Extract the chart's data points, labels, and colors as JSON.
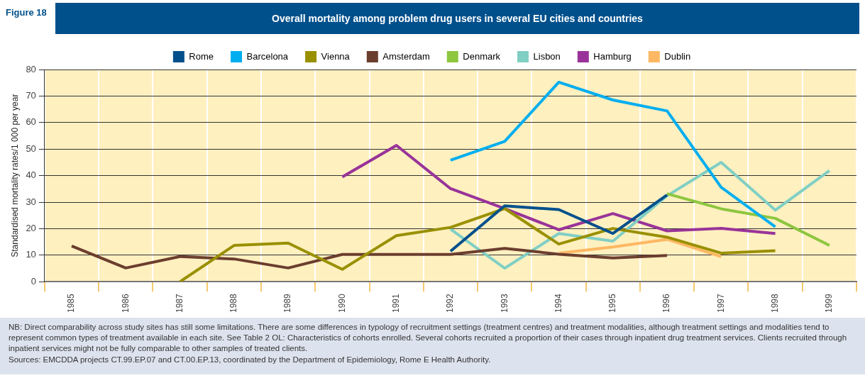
{
  "chart_data": {
    "type": "line",
    "title": "Overall mortality among problem drug users in several EU cities and countries",
    "ylabel": "Standardised mortality rates/1 000 per year",
    "categories": [
      "1985",
      "1986",
      "1987",
      "1988",
      "1989",
      "1990",
      "1991",
      "1992",
      "1993",
      "1994",
      "1995",
      "1996",
      "1997",
      "1998",
      "1999"
    ],
    "series": [
      {
        "name": "Rome",
        "color": "#00508c",
        "values": [
          null,
          null,
          null,
          null,
          null,
          null,
          null,
          11.5,
          28.6,
          27.2,
          18.2,
          32.7,
          null,
          null,
          null
        ]
      },
      {
        "name": "Barcelona",
        "color": "#00aeef",
        "values": [
          null,
          null,
          null,
          null,
          null,
          null,
          null,
          45.8,
          52.9,
          75.2,
          68.5,
          64.4,
          35.6,
          20.7,
          null
        ]
      },
      {
        "name": "Vienna",
        "color": "#999000",
        "values": [
          null,
          null,
          0,
          13.7,
          14.6,
          4.7,
          17.4,
          20.5,
          27.6,
          14.2,
          20.1,
          16.8,
          10.8,
          11.7,
          null
        ]
      },
      {
        "name": "Amsterdam",
        "color": "#6b3e2e",
        "values": [
          13.5,
          5.2,
          9.5,
          8.6,
          5.2,
          10.3,
          10.3,
          10.3,
          12.6,
          10.4,
          9,
          9.9,
          null,
          null,
          null
        ]
      },
      {
        "name": "Denmark",
        "color": "#8dc63f",
        "values": [
          null,
          null,
          null,
          null,
          null,
          null,
          null,
          null,
          null,
          null,
          null,
          33.2,
          27.5,
          23.9,
          13.7
        ]
      },
      {
        "name": "Lisbon",
        "color": "#80cfc4",
        "values": [
          null,
          null,
          null,
          null,
          null,
          null,
          null,
          19.8,
          5.1,
          18.2,
          15.3,
          32.4,
          45,
          27,
          41.9
        ]
      },
      {
        "name": "Hamburg",
        "color": "#993399",
        "values": [
          null,
          null,
          null,
          null,
          null,
          39.5,
          51.4,
          35.1,
          27.6,
          19.6,
          25.7,
          19.2,
          20.1,
          18.2,
          null
        ]
      },
      {
        "name": "Dublin",
        "color": "#fdb863",
        "values": [
          null,
          null,
          null,
          null,
          null,
          null,
          null,
          null,
          null,
          10.8,
          13.1,
          16,
          9.5,
          null,
          null
        ]
      }
    ],
    "ylim": [
      0,
      80
    ],
    "yticks": [
      0,
      10,
      20,
      30,
      40,
      50,
      60,
      70,
      80
    ],
    "grid": true,
    "legend": "top",
    "marker": "none",
    "line_style": "solid",
    "annotations": [
      "Figure 18",
      "NB: Direct comparability across study sites has still some limitations. There are some differences in typology of recruitment settings (treatment centres) and treatment modalities, although treatment settings and modalities tend to represent common types of treatment available in each site. See Table 2 OL: Characteristics of cohorts enrolled. Several cohorts recruited a proportion of their cases through inpatient drug treatment services. Clients recruited through inpatient services might not be fully comparable to other samples of treated clients.",
      "Sources: EMCDDA projects CT.99.EP.07 and CT.00.EP.13, coordinated by the Department of Epidemiology, Rome E Health Authority."
    ]
  }
}
